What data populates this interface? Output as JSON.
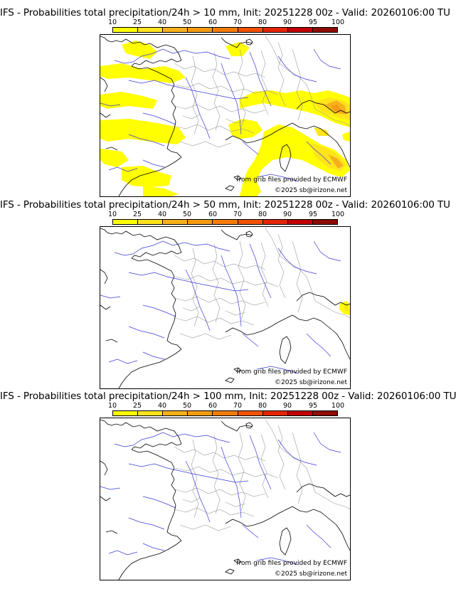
{
  "colorbar": {
    "ticks": [
      "10",
      "25",
      "40",
      "50",
      "60",
      "70",
      "80",
      "90",
      "95",
      "100"
    ],
    "colors": [
      "#ffff00",
      "#ffe41c",
      "#f7b11b",
      "#f59b13",
      "#f37c0c",
      "#f05307",
      "#e32600",
      "#c00006",
      "#8d0d05",
      "#5a0000"
    ]
  },
  "panels": [
    {
      "title": "IFS - Probabilities total precipitation/24h > 10 mm, Init: 20251228 00z - Valid: 20260106:00 TU",
      "source_credit": "from grib files provided by ECMWF",
      "copyright": "©2025 sb@irizone.net",
      "precip_coverage": "extensive"
    },
    {
      "title": "IFS - Probabilities total precipitation/24h > 50 mm, Init: 20251228 00z - Valid: 20260106:00 TU",
      "source_credit": "from grib files provided by ECMWF",
      "copyright": "©2025 sb@irizone.net",
      "precip_coverage": "minimal"
    },
    {
      "title": "IFS - Probabilities total precipitation/24h > 100 mm, Init: 20251228 00z - Valid: 20260106:00 TU",
      "source_credit": "from grib files provided by ECMWF",
      "copyright": "©2025 sb@irizone.net",
      "precip_coverage": "none"
    }
  ]
}
